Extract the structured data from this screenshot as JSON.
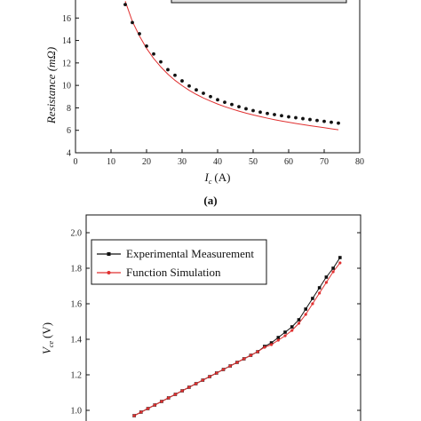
{
  "chart_data": [
    {
      "type": "scatter",
      "panel_label": "(a)",
      "xlabel_var": "I",
      "xlabel_sub": "c",
      "xlabel_unit": "(A)",
      "ylabel": "Resistance (mΩ)",
      "xlim": [
        0,
        80
      ],
      "ylim": [
        4,
        18
      ],
      "x_ticks": [
        "0",
        "10",
        "20",
        "30",
        "40",
        "50",
        "60",
        "70",
        "80"
      ],
      "y_ticks": [
        "4",
        "6",
        "8",
        "10",
        "12",
        "14",
        "16"
      ],
      "grid": false,
      "series": [
        {
          "marker": "dot",
          "color": "#111111",
          "x": [
            14,
            16,
            18,
            20,
            22,
            24,
            26,
            28,
            30,
            32,
            34,
            36,
            38,
            40,
            42,
            44,
            46,
            48,
            50,
            52,
            54,
            56,
            58,
            60,
            62,
            64,
            66,
            68,
            70,
            72,
            74
          ],
          "y": [
            17.2,
            15.6,
            14.6,
            13.5,
            12.8,
            12.1,
            11.4,
            10.9,
            10.4,
            9.95,
            9.6,
            9.3,
            9.0,
            8.72,
            8.5,
            8.3,
            8.1,
            7.92,
            7.76,
            7.62,
            7.5,
            7.4,
            7.3,
            7.2,
            7.12,
            7.04,
            6.96,
            6.88,
            6.8,
            6.72,
            6.64
          ]
        },
        {
          "marker": "line",
          "color": "#e03030",
          "x": [
            14,
            16,
            18,
            20,
            22,
            24,
            26,
            28,
            30,
            32,
            34,
            36,
            38,
            40,
            42,
            44,
            46,
            48,
            50,
            52,
            54,
            56,
            58,
            60,
            62,
            64,
            66,
            68,
            70,
            72,
            74
          ],
          "y": [
            17.5,
            15.7,
            14.4,
            13.3,
            12.4,
            11.65,
            11.0,
            10.45,
            9.98,
            9.56,
            9.2,
            8.88,
            8.6,
            8.34,
            8.11,
            7.9,
            7.71,
            7.53,
            7.37,
            7.22,
            7.08,
            6.95,
            6.83,
            6.72,
            6.61,
            6.51,
            6.41,
            6.32,
            6.23,
            6.14,
            6.05
          ]
        }
      ]
    },
    {
      "type": "line",
      "xlim": [
        0,
        80
      ],
      "ylim": [
        0.9,
        2.1
      ],
      "ylabel_var": "V",
      "ylabel_sub": "ce",
      "ylabel_unit": "(V)",
      "y_ticks": [
        "1.0",
        "1.2",
        "1.4",
        "1.6",
        "1.8",
        "2.0"
      ],
      "grid": false,
      "legend_position": "top-left",
      "series": [
        {
          "name": "Experimental Measurement",
          "color": "#111111",
          "x": [
            14,
            16,
            18,
            20,
            22,
            24,
            26,
            28,
            30,
            32,
            34,
            36,
            38,
            40,
            42,
            44,
            46,
            48,
            50,
            52,
            54,
            56,
            58,
            60,
            62,
            64,
            66,
            68,
            70,
            72,
            74
          ],
          "y": [
            0.97,
            0.99,
            1.01,
            1.03,
            1.05,
            1.07,
            1.09,
            1.11,
            1.13,
            1.15,
            1.17,
            1.19,
            1.21,
            1.23,
            1.25,
            1.27,
            1.29,
            1.31,
            1.33,
            1.36,
            1.38,
            1.41,
            1.44,
            1.47,
            1.51,
            1.57,
            1.63,
            1.69,
            1.75,
            1.8,
            1.86
          ]
        },
        {
          "name": "Function Simulation",
          "color": "#e03030",
          "x": [
            14,
            16,
            18,
            20,
            22,
            24,
            26,
            28,
            30,
            32,
            34,
            36,
            38,
            40,
            42,
            44,
            46,
            48,
            50,
            52,
            54,
            56,
            58,
            60,
            62,
            64,
            66,
            68,
            70,
            72,
            74
          ],
          "y": [
            0.97,
            0.99,
            1.01,
            1.03,
            1.05,
            1.07,
            1.09,
            1.11,
            1.13,
            1.15,
            1.17,
            1.19,
            1.21,
            1.23,
            1.25,
            1.27,
            1.29,
            1.31,
            1.33,
            1.355,
            1.37,
            1.395,
            1.42,
            1.45,
            1.49,
            1.54,
            1.6,
            1.66,
            1.72,
            1.78,
            1.83
          ]
        }
      ]
    }
  ]
}
